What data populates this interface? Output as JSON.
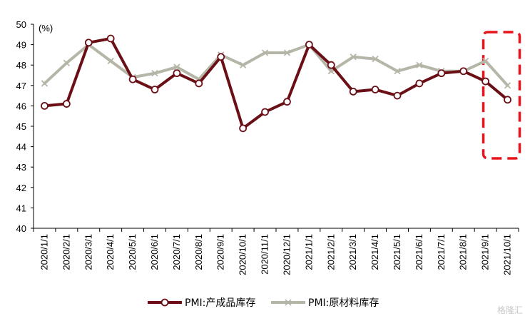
{
  "chart_data": {
    "type": "line",
    "unit_label": "(%)",
    "ylim": [
      40,
      50
    ],
    "y_ticks": [
      "40",
      "41",
      "42",
      "43",
      "44",
      "45",
      "46",
      "47",
      "48",
      "49",
      "50"
    ],
    "categories": [
      "2020/1/1",
      "2020/2/1",
      "2020/3/1",
      "2020/4/1",
      "2020/5/1",
      "2020/6/1",
      "2020/7/1",
      "2020/8/1",
      "2020/9/1",
      "2020/10/1",
      "2020/11/1",
      "2020/12/1",
      "2021/1/1",
      "2021/2/1",
      "2021/3/1",
      "2021/4/1",
      "2021/5/1",
      "2021/6/1",
      "2021/7/1",
      "2021/8/1",
      "2021/9/1",
      "2021/10/1"
    ],
    "series": [
      {
        "name": "PMI:产成品库存",
        "color": "#6b0f16",
        "marker": "circle",
        "values": [
          46.0,
          46.1,
          49.1,
          49.3,
          47.3,
          46.8,
          47.6,
          47.1,
          48.4,
          44.9,
          45.7,
          46.2,
          49.0,
          48.0,
          46.7,
          46.8,
          46.5,
          47.1,
          47.6,
          47.7,
          47.2,
          46.3
        ]
      },
      {
        "name": "PMI:原材料库存",
        "color": "#b5b5a8",
        "marker": "x",
        "values": [
          47.1,
          48.1,
          49.0,
          48.2,
          47.4,
          47.6,
          47.9,
          47.3,
          48.5,
          48.0,
          48.6,
          48.6,
          49.0,
          47.7,
          48.4,
          48.3,
          47.7,
          48.0,
          47.7,
          47.7,
          48.2,
          47.0
        ]
      }
    ],
    "highlight": {
      "from_category": "2021/9/1",
      "to_category": "2021/10/1",
      "color": "#e8141c",
      "style": "dashed"
    },
    "grid": false,
    "legend_position": "bottom"
  },
  "watermark": "格隆汇"
}
